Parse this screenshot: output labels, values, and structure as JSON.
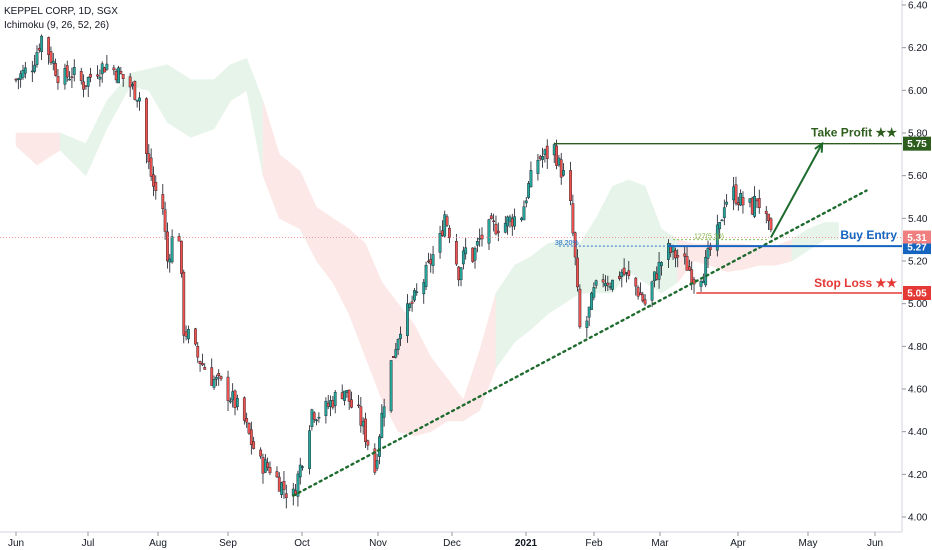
{
  "header": {
    "symbol": "KEPPEL CORP, 1D, SGX",
    "indicator": "Ichimoku (9, 26, 52, 26)"
  },
  "colors": {
    "up": "#26a69a",
    "down": "#ef5350",
    "candle": "#131722",
    "cloud_green": "#e6f4ea",
    "cloud_red": "#fde8e8",
    "trendline": "#1e6b2e",
    "take_profit": "#2e5e1e",
    "buy_entry": "#1565c0",
    "stop_loss": "#e53935",
    "last_price": "#f08080"
  },
  "chart_data": {
    "type": "candlestick",
    "x_start": "2020-06-01",
    "x_axis": {
      "labels": [
        "Jun",
        "Jul",
        "Aug",
        "Sep",
        "Oct",
        "Nov",
        "Dec",
        "2021",
        "Feb",
        "Mar",
        "Apr",
        "May",
        "Jun"
      ]
    },
    "y_axis": {
      "range": [
        3.95,
        6.45
      ],
      "ticks": [
        "6.40",
        "6.20",
        "6.00",
        "5.80",
        "5.60",
        "5.40",
        "5.20",
        "5.00",
        "4.80",
        "4.60",
        "4.40",
        "4.20",
        "4.00"
      ]
    },
    "close_path": [
      [
        "2020-06-01",
        6.05
      ],
      [
        "2020-06-08",
        6.12
      ],
      [
        "2020-06-12",
        6.25
      ],
      [
        "2020-06-15",
        6.18
      ],
      [
        "2020-06-20",
        6.05
      ],
      [
        "2020-06-25",
        6.08
      ],
      [
        "2020-06-30",
        6.03
      ],
      [
        "2020-07-06",
        6.1
      ],
      [
        "2020-07-10",
        6.12
      ],
      [
        "2020-07-15",
        6.08
      ],
      [
        "2020-07-20",
        6.02
      ],
      [
        "2020-07-24",
        5.97
      ],
      [
        "2020-07-27",
        5.7
      ],
      [
        "2020-07-30",
        5.55
      ],
      [
        "2020-08-03",
        5.45
      ],
      [
        "2020-08-05",
        5.2
      ],
      [
        "2020-08-07",
        5.3
      ],
      [
        "2020-08-10",
        5.32
      ],
      [
        "2020-08-12",
        4.88
      ],
      [
        "2020-08-14",
        4.85
      ],
      [
        "2020-08-18",
        4.75
      ],
      [
        "2020-08-24",
        4.65
      ],
      [
        "2020-08-28",
        4.62
      ],
      [
        "2020-09-02",
        4.55
      ],
      [
        "2020-09-06",
        4.48
      ],
      [
        "2020-09-10",
        4.35
      ],
      [
        "2020-09-14",
        4.25
      ],
      [
        "2020-09-18",
        4.23
      ],
      [
        "2020-09-21",
        4.18
      ],
      [
        "2020-09-25",
        4.12
      ],
      [
        "2020-09-28",
        4.1
      ],
      [
        "2020-10-02",
        4.28
      ],
      [
        "2020-10-06",
        4.5
      ],
      [
        "2020-10-10",
        4.48
      ],
      [
        "2020-10-15",
        4.55
      ],
      [
        "2020-10-20",
        4.6
      ],
      [
        "2020-10-23",
        4.52
      ],
      [
        "2020-10-26",
        4.48
      ],
      [
        "2020-10-30",
        4.35
      ],
      [
        "2020-11-02",
        4.22
      ],
      [
        "2020-11-04",
        4.4
      ],
      [
        "2020-11-06",
        4.55
      ],
      [
        "2020-11-09",
        4.72
      ],
      [
        "2020-11-13",
        4.9
      ],
      [
        "2020-11-18",
        5.0
      ],
      [
        "2020-11-22",
        5.08
      ],
      [
        "2020-11-26",
        5.2
      ],
      [
        "2020-11-30",
        5.3
      ],
      [
        "2020-12-02",
        5.42
      ],
      [
        "2020-12-05",
        5.3
      ],
      [
        "2020-12-08",
        5.15
      ],
      [
        "2020-12-11",
        5.25
      ],
      [
        "2020-12-14",
        5.22
      ],
      [
        "2020-12-17",
        5.3
      ],
      [
        "2020-12-21",
        5.35
      ],
      [
        "2020-12-28",
        5.38
      ],
      [
        "2021-01-04",
        5.42
      ],
      [
        "2021-01-07",
        5.55
      ],
      [
        "2021-01-11",
        5.68
      ],
      [
        "2021-01-15",
        5.7
      ],
      [
        "2021-01-18",
        5.73
      ],
      [
        "2021-01-20",
        5.65
      ],
      [
        "2021-01-22",
        5.6
      ],
      [
        "2021-01-25",
        5.45
      ],
      [
        "2021-01-27",
        5.2
      ],
      [
        "2021-01-29",
        4.88
      ],
      [
        "2021-02-01",
        4.92
      ],
      [
        "2021-02-04",
        5.05
      ],
      [
        "2021-02-08",
        5.12
      ],
      [
        "2021-02-12",
        5.1
      ],
      [
        "2021-02-16",
        5.15
      ],
      [
        "2021-02-22",
        5.08
      ],
      [
        "2021-02-26",
        5.0
      ],
      [
        "2021-03-02",
        5.12
      ],
      [
        "2021-03-05",
        5.2
      ],
      [
        "2021-03-08",
        5.25
      ],
      [
        "2021-03-12",
        5.22
      ],
      [
        "2021-03-16",
        5.18
      ],
      [
        "2021-03-19",
        5.12
      ],
      [
        "2021-03-23",
        5.15
      ],
      [
        "2021-03-26",
        5.25
      ],
      [
        "2021-03-30",
        5.35
      ],
      [
        "2021-04-01",
        5.48
      ],
      [
        "2021-04-05",
        5.52
      ],
      [
        "2021-04-09",
        5.47
      ],
      [
        "2021-04-13",
        5.45
      ],
      [
        "2021-04-15",
        5.5
      ],
      [
        "2021-04-19",
        5.38
      ],
      [
        "2021-04-21",
        5.31
      ]
    ],
    "ichimoku_cloud": [
      [
        "2020-06-01",
        5.74,
        5.8
      ],
      [
        "2020-06-10",
        5.65,
        5.8
      ],
      [
        "2020-06-20",
        5.72,
        5.8
      ],
      [
        "2020-07-01",
        5.6,
        5.75
      ],
      [
        "2020-07-10",
        5.82,
        5.95
      ],
      [
        "2020-07-20",
        6.02,
        6.08
      ],
      [
        "2020-07-28",
        6.0,
        6.1
      ],
      [
        "2020-08-05",
        5.85,
        6.12
      ],
      [
        "2020-08-15",
        5.78,
        6.05
      ],
      [
        "2020-08-25",
        5.82,
        6.05
      ],
      [
        "2020-09-01",
        5.95,
        6.12
      ],
      [
        "2020-09-08",
        6.0,
        6.15
      ],
      [
        "2020-09-15",
        5.6,
        5.95
      ],
      [
        "2020-09-22",
        5.4,
        5.7
      ],
      [
        "2020-10-01",
        5.35,
        5.62
      ],
      [
        "2020-10-08",
        5.2,
        5.45
      ],
      [
        "2020-10-15",
        5.1,
        5.4
      ],
      [
        "2020-10-22",
        4.95,
        5.35
      ],
      [
        "2020-10-29",
        4.75,
        5.28
      ],
      [
        "2020-11-05",
        4.55,
        5.1
      ],
      [
        "2020-11-12",
        4.4,
        5.0
      ],
      [
        "2020-11-19",
        4.38,
        4.9
      ],
      [
        "2020-11-26",
        4.4,
        4.75
      ],
      [
        "2020-12-03",
        4.45,
        4.65
      ],
      [
        "2020-12-10",
        4.45,
        4.55
      ],
      [
        "2020-12-17",
        4.5,
        4.78
      ],
      [
        "2020-12-24",
        4.7,
        5.05
      ],
      [
        "2021-01-01",
        4.82,
        5.18
      ],
      [
        "2021-01-08",
        4.88,
        5.22
      ],
      [
        "2021-01-15",
        4.95,
        5.28
      ],
      [
        "2021-01-22",
        5.0,
        5.3
      ],
      [
        "2021-01-29",
        5.05,
        5.28
      ],
      [
        "2021-02-05",
        5.05,
        5.4
      ],
      [
        "2021-02-12",
        5.05,
        5.55
      ],
      [
        "2021-02-19",
        5.15,
        5.58
      ],
      [
        "2021-02-26",
        5.1,
        5.55
      ],
      [
        "2021-03-05",
        5.05,
        5.35
      ],
      [
        "2021-03-12",
        5.1,
        5.3
      ],
      [
        "2021-03-19",
        5.2,
        5.28
      ],
      [
        "2021-03-26",
        5.18,
        5.28
      ],
      [
        "2021-04-02",
        5.15,
        5.28
      ],
      [
        "2021-04-09",
        5.16,
        5.28
      ],
      [
        "2021-04-16",
        5.18,
        5.27
      ],
      [
        "2021-04-23",
        5.18,
        5.27
      ],
      [
        "2021-04-30",
        5.2,
        5.3
      ],
      [
        "2021-05-07",
        5.25,
        5.35
      ],
      [
        "2021-05-14",
        5.3,
        5.38
      ],
      [
        "2021-05-20",
        5.3,
        5.38
      ]
    ],
    "trendline": {
      "from": [
        "2020-09-28",
        4.1
      ],
      "to": [
        "2021-06-01",
        5.53
      ]
    },
    "annotations": {
      "take_profit": {
        "label": "Take Profit ★★",
        "price": "5.75",
        "value": 5.75,
        "from": "2021-01-18"
      },
      "buy_entry": {
        "label": "Buy Entry",
        "price": "5.27",
        "value": 5.27,
        "from": "2021-03-08"
      },
      "stop_loss": {
        "label": "Stop Loss ★★",
        "price": "5.05",
        "value": 5.05,
        "from": "2021-03-20"
      },
      "last_price": {
        "price": "5.31",
        "value": 5.31
      },
      "fib_level_text": "38.20%",
      "fib_level_value": 5.27,
      "fib_ext_text": "127(5.30)",
      "fib_ext_value": 5.3,
      "projection_arrow": {
        "from": [
          "2021-04-21",
          5.31
        ],
        "to": [
          "2021-05-13",
          5.75
        ]
      }
    }
  }
}
